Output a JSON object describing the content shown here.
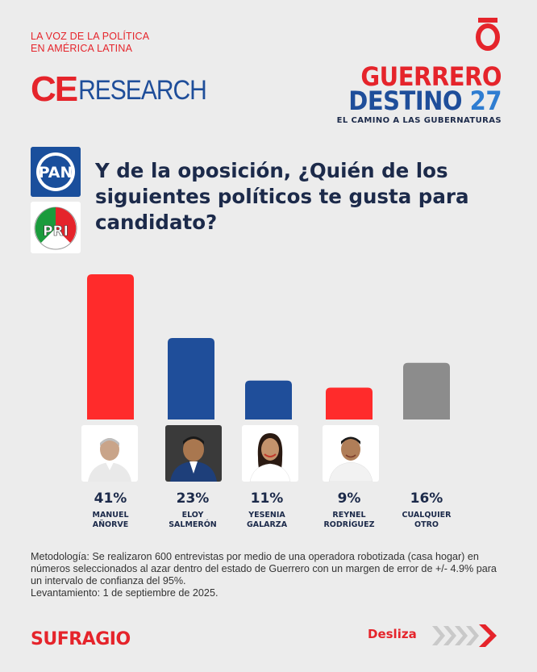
{
  "tagline": {
    "line1": "LA VOZ DE LA POLÍTICA",
    "line2": "EN AMÉRICA LATINA"
  },
  "research_logo": {
    "ce": "CE",
    "research": "RESEARCH"
  },
  "campaign": {
    "line1": "GUERRERO",
    "line2_word": "DESTINO",
    "line2_num": "27",
    "line3": "EL CAMINO A LAS GUBERNATURAS"
  },
  "parties": {
    "pan": "PAN",
    "pri": "PRI"
  },
  "question": "Y de la oposición, ¿Quién de los siguientes políticos te gusta para candidato?",
  "chart_data": {
    "type": "bar",
    "categories": [
      "MANUEL AÑORVE",
      "ELOY SALMERÓN",
      "YESENIA GALARZA",
      "REYNEL RODRÍGUEZ",
      "CUALQUIER OTRO"
    ],
    "values": [
      41,
      23,
      11,
      9,
      16
    ],
    "value_labels": [
      "41%",
      "23%",
      "11%",
      "9%",
      "16%"
    ],
    "colors": [
      "#ff2b2b",
      "#1f4e9a",
      "#1f4e9a",
      "#ff2b2b",
      "#8c8c8c"
    ],
    "ylim": [
      0,
      41
    ],
    "grid": false,
    "title": "",
    "xlabel": "",
    "ylabel": ""
  },
  "candidates": [
    {
      "pct": "41%",
      "name1": "MANUEL",
      "name2": "AÑORVE"
    },
    {
      "pct": "23%",
      "name1": "ELOY",
      "name2": "SALMERÓN"
    },
    {
      "pct": "11%",
      "name1": "YESENIA",
      "name2": "GALARZA"
    },
    {
      "pct": "9%",
      "name1": "REYNEL",
      "name2": "RODRÍGUEZ"
    },
    {
      "pct": "16%",
      "name1": "CUALQUIER",
      "name2": "OTRO"
    }
  ],
  "methodology": {
    "text": "Metodología: Se realizaron 600 entrevistas por medio de una operadora robotizada (casa hogar) en números seleccionados al azar dentro del estado de Guerrero con un margen de error de +/- 4.9% para un intervalo de confianza del 95%.",
    "date": "Levantamiento: 1 de septiembre de 2025."
  },
  "footer": {
    "brand": "SUFRAGIO",
    "swipe_label": "Desliza"
  },
  "colors": {
    "red": "#e5242b",
    "blue": "#1f4e9a",
    "navy": "#1c2a4a",
    "gray": "#8c8c8c"
  }
}
